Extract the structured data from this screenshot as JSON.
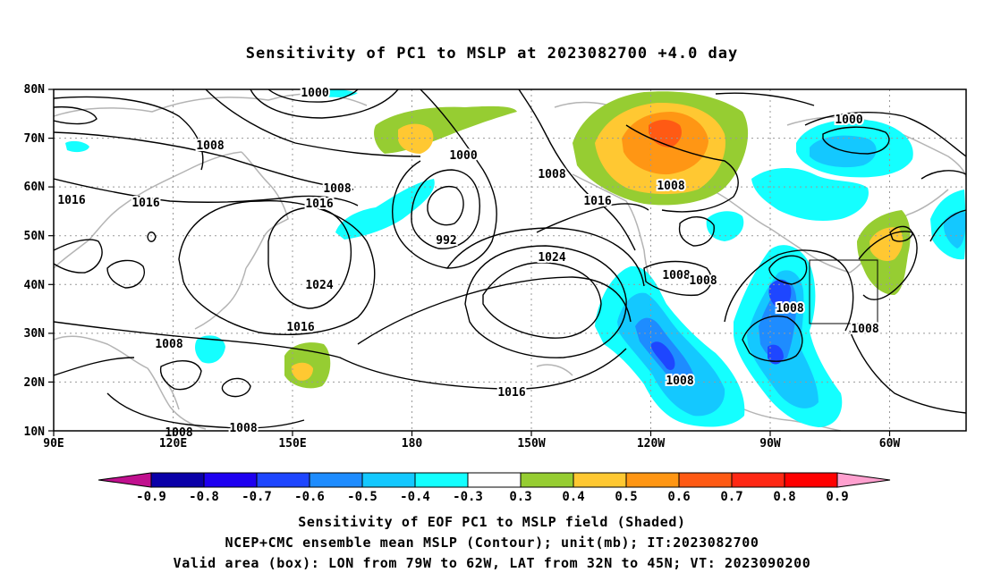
{
  "title": "Sensitivity of PC1 to MSLP at 2023082700 +4.0 day",
  "lat_labels": [
    "80N",
    "70N",
    "60N",
    "50N",
    "40N",
    "30N",
    "20N",
    "10N"
  ],
  "lon_labels": [
    "90E",
    "120E",
    "150E",
    "180",
    "150W",
    "120W",
    "90W",
    "60W"
  ],
  "colorbar": {
    "labels": [
      "-0.9",
      "-0.8",
      "-0.7",
      "-0.6",
      "-0.5",
      "-0.4",
      "-0.3",
      "0.3",
      "0.4",
      "0.5",
      "0.6",
      "0.7",
      "0.8",
      "0.9"
    ],
    "colors": [
      "#c0108e",
      "#0a00a8",
      "#1e00f0",
      "#1e46ff",
      "#1e8cff",
      "#14c8ff",
      "#14ffff",
      "#ffffff",
      "#96cd32",
      "#ffc832",
      "#ff9614",
      "#ff5a14",
      "#ff2814",
      "#ff0000",
      "#ffa0cf"
    ]
  },
  "contour_labels": [
    {
      "text": "1000"
    },
    {
      "text": "1008"
    },
    {
      "text": "1016"
    },
    {
      "text": "1016"
    },
    {
      "text": "1008"
    },
    {
      "text": "1016"
    },
    {
      "text": "1000"
    },
    {
      "text": "992"
    },
    {
      "text": "1024"
    },
    {
      "text": "1016"
    },
    {
      "text": "1008"
    },
    {
      "text": "1008"
    },
    {
      "text": "1024"
    },
    {
      "text": "1016"
    },
    {
      "text": "1008"
    },
    {
      "text": "1016"
    },
    {
      "text": "1008"
    },
    {
      "text": "1000"
    },
    {
      "text": "1008"
    },
    {
      "text": "1008"
    },
    {
      "text": "1008"
    },
    {
      "text": "1008"
    },
    {
      "text": "1008"
    },
    {
      "text": "1008"
    }
  ],
  "valid_box": {
    "lon_w": -79,
    "lon_e": -62,
    "lat_s": 32,
    "lat_n": 45
  },
  "captions": [
    "Sensitivity of EOF PC1 to MSLP field (Shaded)",
    "NCEP+CMC ensemble mean MSLP (Contour); unit(mb); IT:2023082700",
    "Valid area (box): LON from 79W to 62W, LAT from 32N to 45N; VT: 2023090200"
  ]
}
